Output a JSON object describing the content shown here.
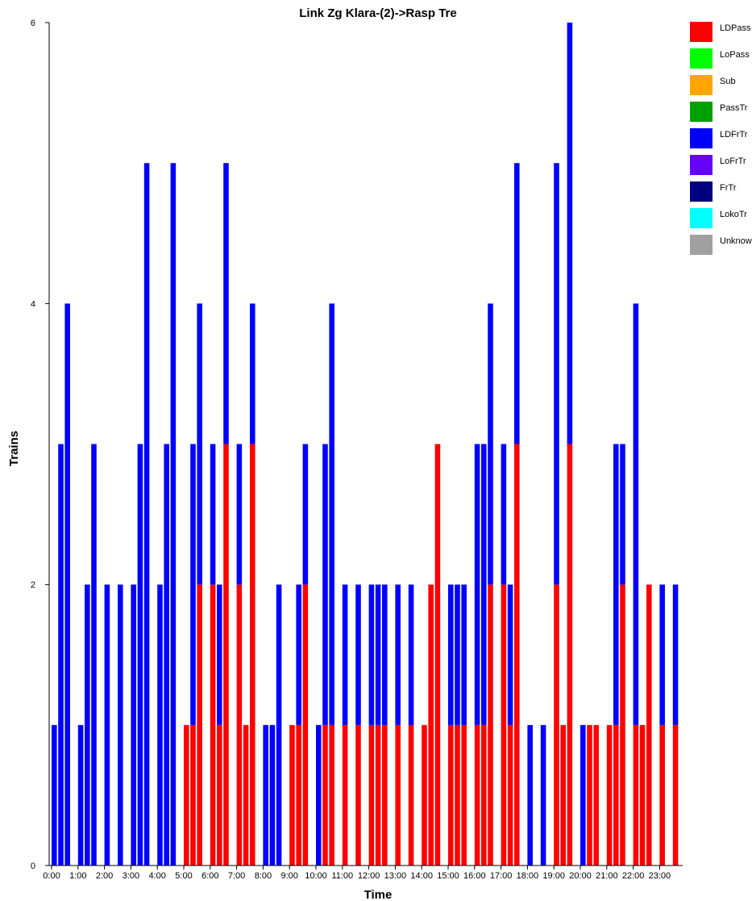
{
  "chart_data": {
    "type": "bar",
    "stacked": true,
    "title": "Link Zg Klara-(2)->Rasp Tre",
    "xlabel": "Time",
    "ylabel": "Trains",
    "ylim": [
      0,
      6
    ],
    "y_ticks": [
      "0",
      "2",
      "4",
      "6"
    ],
    "x_tick_labels": [
      "0:00",
      "1:00",
      "2:00",
      "3:00",
      "4:00",
      "5:00",
      "6:00",
      "7:00",
      "8:00",
      "9:00",
      "10:00",
      "11:00",
      "12:00",
      "13:00",
      "14:00",
      "15:00",
      "16:00",
      "17:00",
      "18:00",
      "19:00",
      "20:00",
      "21:00",
      "22:00",
      "23:00"
    ],
    "x_unit": "hours",
    "bar_width_hours": 0.2,
    "legend_position": "right",
    "legend": [
      {
        "name": "LDPass",
        "color": "#ff0000"
      },
      {
        "name": "LoPass",
        "color": "#00ff00"
      },
      {
        "name": "Sub",
        "color": "#ffa500"
      },
      {
        "name": "PassTr",
        "color": "#00a000"
      },
      {
        "name": "LDFrTr",
        "color": "#0000ff"
      },
      {
        "name": "LoFrTr",
        "color": "#6600ff"
      },
      {
        "name": "FrTr",
        "color": "#000080"
      },
      {
        "name": "LokoTr",
        "color": "#00ffff"
      },
      {
        "name": "Unknown",
        "color": "#a0a0a0"
      }
    ],
    "x": [
      0.1,
      0.35,
      0.6,
      1.1,
      1.35,
      1.6,
      2.1,
      2.6,
      3.1,
      3.35,
      3.6,
      4.1,
      4.35,
      4.6,
      5.1,
      5.35,
      5.6,
      6.1,
      6.35,
      6.6,
      7.1,
      7.35,
      7.6,
      8.1,
      8.35,
      8.6,
      9.1,
      9.35,
      9.6,
      10.1,
      10.35,
      10.6,
      11.1,
      11.6,
      12.1,
      12.35,
      12.6,
      13.1,
      13.6,
      14.1,
      14.35,
      14.6,
      15.1,
      15.35,
      15.6,
      16.1,
      16.35,
      16.6,
      17.1,
      17.35,
      17.6,
      18.1,
      18.6,
      19.1,
      19.35,
      19.6,
      20.1,
      20.35,
      20.6,
      21.1,
      21.35,
      21.6,
      22.1,
      22.35,
      22.6,
      23.1,
      23.6
    ],
    "series": [
      {
        "name": "LDPass",
        "color": "#ff0000",
        "values": [
          0,
          0,
          0,
          0,
          0,
          0,
          0,
          0,
          0,
          0,
          0,
          0,
          0,
          0,
          1,
          1,
          2,
          2,
          1,
          3,
          2,
          1,
          3,
          0,
          0,
          0,
          1,
          1,
          2,
          0,
          1,
          1,
          1,
          1,
          1,
          1,
          1,
          1,
          1,
          1,
          2,
          3,
          1,
          1,
          1,
          1,
          1,
          2,
          2,
          1,
          3,
          0,
          0,
          2,
          1,
          3,
          0,
          1,
          1,
          1,
          1,
          2,
          1,
          1,
          2,
          1,
          1
        ]
      },
      {
        "name": "LDFrTr",
        "color": "#0000ff",
        "values": [
          1,
          3,
          4,
          1,
          2,
          3,
          2,
          2,
          2,
          3,
          5,
          2,
          3,
          5,
          0,
          2,
          2,
          1,
          1,
          2,
          1,
          0,
          1,
          1,
          1,
          2,
          0,
          1,
          1,
          1,
          2,
          3,
          1,
          1,
          1,
          1,
          1,
          1,
          1,
          0,
          0,
          0,
          1,
          1,
          1,
          2,
          2,
          2,
          1,
          1,
          2,
          1,
          1,
          3,
          0,
          3,
          1,
          0,
          0,
          0,
          2,
          1,
          3,
          0,
          0,
          1,
          1
        ]
      }
    ]
  }
}
